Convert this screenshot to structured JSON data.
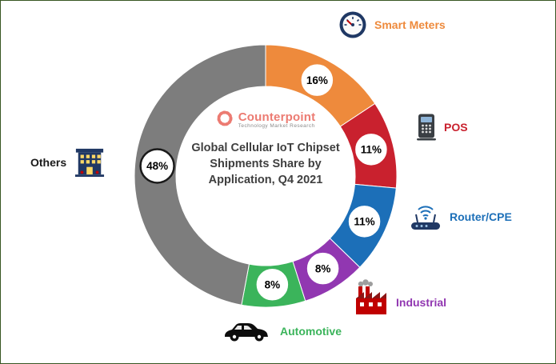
{
  "frame": {
    "background": "#FFFFFF",
    "border_color": "#375623"
  },
  "logo": {
    "name": "Counterpoint",
    "tagline": "Technology Market Research",
    "brand_color": "#EC7B72"
  },
  "chart_data": {
    "type": "pie",
    "donut": true,
    "title": "Global Cellular IoT Chipset Shipments Share by Application, Q4 2021",
    "title_lines": [
      "Global Cellular IoT Chipset",
      "Shipments Share by",
      "Application, Q4 2021"
    ],
    "start_angle_deg": 0,
    "direction": "clockwise",
    "legend_position": "around-donut",
    "grid": false,
    "segments": [
      {
        "label": "Smart Meters",
        "value": 16,
        "pct_label": "16%",
        "color": "#EE8A3C",
        "label_color": "#EE8A3C",
        "icon": "gauge-icon"
      },
      {
        "label": "POS",
        "value": 11,
        "pct_label": "11%",
        "color": "#C9212E",
        "label_color": "#C9212E",
        "icon": "pos-terminal-icon"
      },
      {
        "label": "Router/CPE",
        "value": 11,
        "pct_label": "11%",
        "color": "#1C6FB8",
        "label_color": "#1C6FB8",
        "icon": "router-icon"
      },
      {
        "label": "Industrial",
        "value": 8,
        "pct_label": "8%",
        "color": "#9137B1",
        "label_color": "#9137B1",
        "icon": "factory-icon"
      },
      {
        "label": "Automotive",
        "value": 8,
        "pct_label": "8%",
        "color": "#3BB45B",
        "label_color": "#3BB45B",
        "icon": "car-icon"
      },
      {
        "label": "Others",
        "value": 48,
        "pct_label": "48%",
        "color": "#7D7D7D",
        "label_color": "#1A1A1A",
        "icon": "building-icon"
      }
    ]
  }
}
